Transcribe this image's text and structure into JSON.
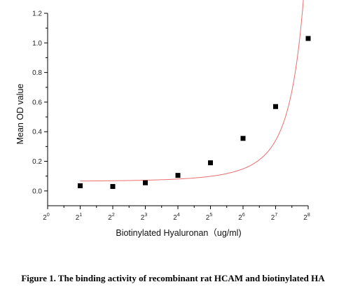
{
  "chart_data": {
    "type": "scatter",
    "xlabel": "Biotinylated Hyaluronan（ug/ml)",
    "ylabel": "Mean OD value",
    "x_scale": "log2",
    "xlim": [
      1,
      256
    ],
    "ylim": [
      -0.1,
      1.2
    ],
    "x_ticks": [
      {
        "value": 1,
        "base": "2",
        "exp": "0"
      },
      {
        "value": 2,
        "base": "2",
        "exp": "1"
      },
      {
        "value": 4,
        "base": "2",
        "exp": "2"
      },
      {
        "value": 8,
        "base": "2",
        "exp": "3"
      },
      {
        "value": 16,
        "base": "2",
        "exp": "4"
      },
      {
        "value": 32,
        "base": "2",
        "exp": "5"
      },
      {
        "value": 64,
        "base": "2",
        "exp": "6"
      },
      {
        "value": 128,
        "base": "2",
        "exp": "7"
      },
      {
        "value": 256,
        "base": "2",
        "exp": "8"
      }
    ],
    "y_ticks": [
      {
        "value": 0.0,
        "label": "0.0"
      },
      {
        "value": 0.2,
        "label": "0.2"
      },
      {
        "value": 0.4,
        "label": "0.4"
      },
      {
        "value": 0.6,
        "label": "0.6"
      },
      {
        "value": 0.8,
        "label": "0.8"
      },
      {
        "value": 1.0,
        "label": "1.0"
      },
      {
        "value": 1.2,
        "label": "1.2"
      }
    ],
    "points": [
      {
        "x": 2,
        "y": 0.035
      },
      {
        "x": 4,
        "y": 0.03
      },
      {
        "x": 8,
        "y": 0.055
      },
      {
        "x": 16,
        "y": 0.105
      },
      {
        "x": 32,
        "y": 0.19
      },
      {
        "x": 64,
        "y": 0.355
      },
      {
        "x": 128,
        "y": 0.57
      },
      {
        "x": 256,
        "y": 1.03
      }
    ],
    "fit_curve": {
      "type": "exponential",
      "color": "#e87070"
    },
    "marker_color": "#000000",
    "grid": false
  },
  "caption": "Figure 1. The binding activity of recombinant rat HCAM and biotinylated HA"
}
